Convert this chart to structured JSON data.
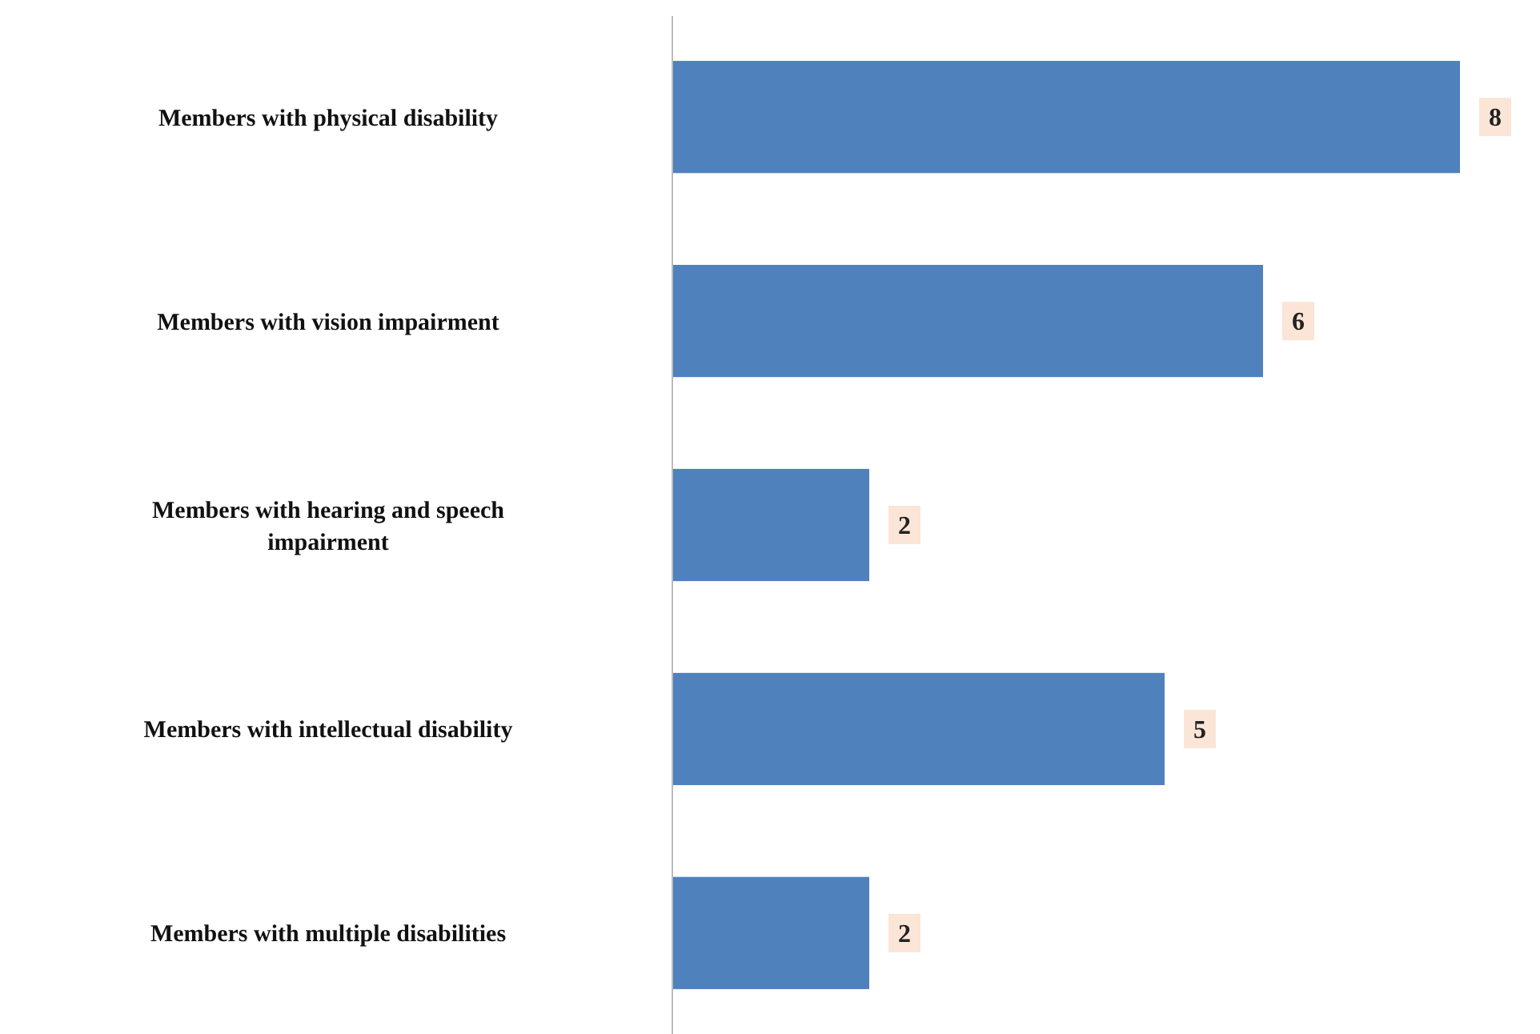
{
  "chart_data": {
    "type": "bar",
    "orientation": "horizontal",
    "categories": [
      "Members with physical disability",
      "Members with vision impairment",
      "Members with hearing and speech impairment",
      "Members with intellectual disability",
      "Members with multiple disabilities"
    ],
    "values": [
      8,
      6,
      2,
      5,
      2
    ],
    "color": "#4f81bd",
    "data_labels": true
  }
}
